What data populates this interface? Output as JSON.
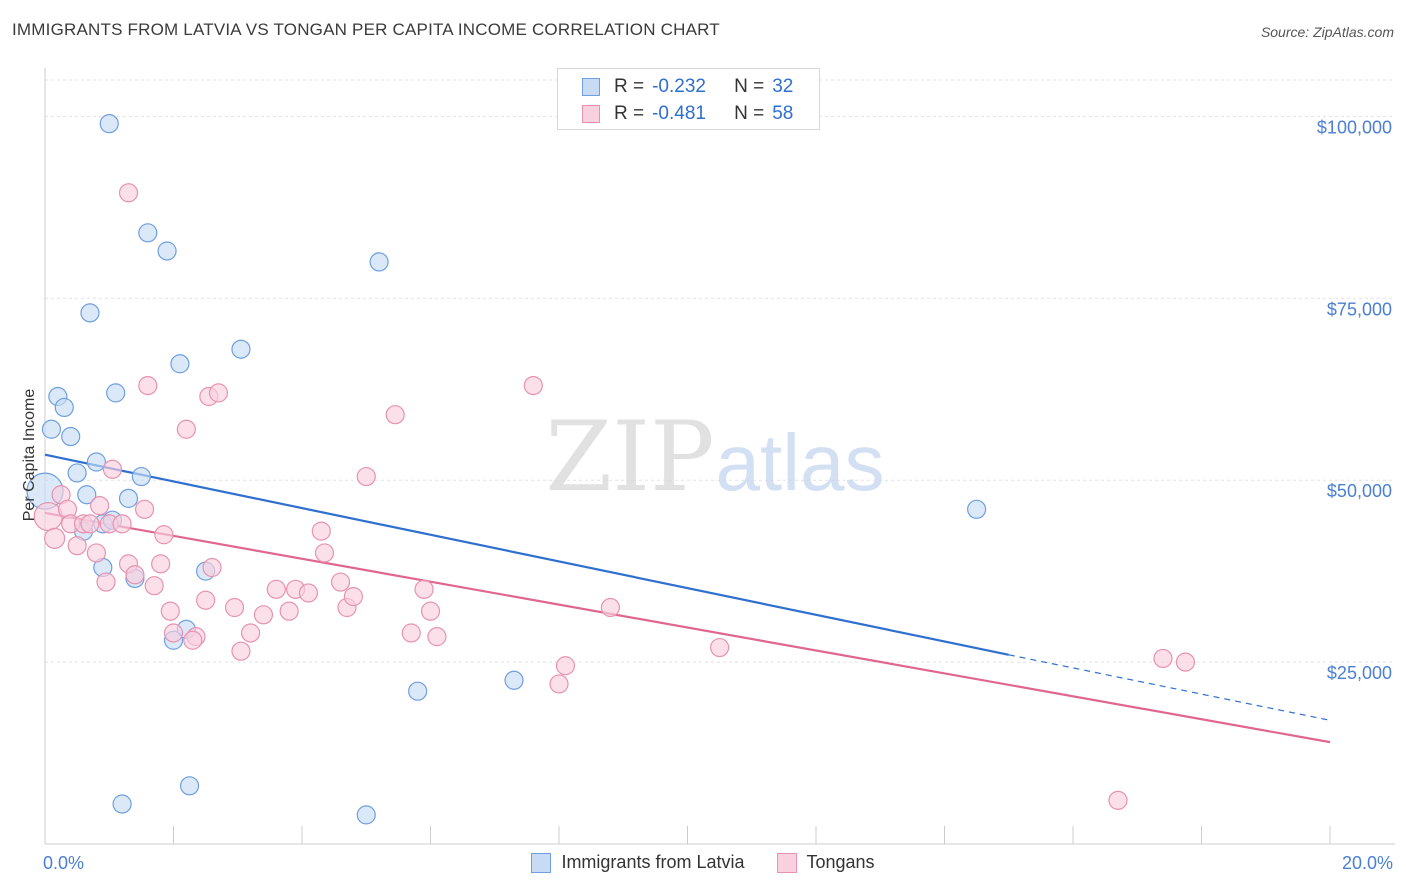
{
  "title": "IMMIGRANTS FROM LATVIA VS TONGAN PER CAPITA INCOME CORRELATION CHART",
  "source": "Source: ZipAtlas.com",
  "watermark": {
    "zip": "ZIP",
    "atlas": "atlas"
  },
  "legend_top": {
    "rows": [
      {
        "r_label": "R =",
        "r_value": "-0.232",
        "n_label": "N =",
        "n_value": "32"
      },
      {
        "r_label": "R =",
        "r_value": "-0.481",
        "n_label": "N =",
        "n_value": "58"
      }
    ]
  },
  "chart_data": {
    "type": "scatter",
    "title": "IMMIGRANTS FROM LATVIA VS TONGAN PER CAPITA INCOME CORRELATION CHART",
    "xlabel": "",
    "ylabel": "Per Capita Income",
    "xlim": [
      0,
      20
    ],
    "ylim": [
      0,
      105000
    ],
    "x_tick_labels": [
      "0.0%",
      "20.0%"
    ],
    "y_ticks": [
      {
        "value": 25000,
        "label": "$25,000"
      },
      {
        "value": 50000,
        "label": "$50,000"
      },
      {
        "value": 75000,
        "label": "$75,000"
      },
      {
        "value": 100000,
        "label": "$100,000"
      }
    ],
    "grid": true,
    "legend_position": "bottom",
    "series": [
      {
        "name": "Immigrants from Latvia",
        "color": "#6f9fe0",
        "fill": "#c7dbf5",
        "trend": {
          "x0": 0,
          "y0": 53500,
          "x1": 15,
          "y1": 26000,
          "dash_x1": 20,
          "dash_y1": 17000,
          "color": "#2f6fcf"
        },
        "points": [
          [
            0.0,
            48500,
            18
          ],
          [
            0.1,
            57000,
            9
          ],
          [
            0.2,
            61500,
            9
          ],
          [
            0.3,
            60000,
            9
          ],
          [
            0.4,
            56000,
            9
          ],
          [
            0.5,
            51000,
            9
          ],
          [
            0.6,
            43000,
            9
          ],
          [
            0.65,
            48000,
            9
          ],
          [
            0.7,
            73000,
            9
          ],
          [
            0.8,
            52500,
            9
          ],
          [
            0.9,
            38000,
            9
          ],
          [
            0.9,
            44000,
            9
          ],
          [
            1.0,
            99000,
            9
          ],
          [
            1.05,
            44500,
            9
          ],
          [
            1.1,
            62000,
            9
          ],
          [
            1.2,
            5500,
            9
          ],
          [
            1.3,
            47500,
            9
          ],
          [
            1.4,
            36500,
            9
          ],
          [
            1.5,
            50500,
            9
          ],
          [
            1.6,
            84000,
            9
          ],
          [
            1.9,
            81500,
            9
          ],
          [
            2.1,
            66000,
            9
          ],
          [
            2.2,
            29500,
            9
          ],
          [
            2.25,
            8000,
            9
          ],
          [
            2.5,
            37500,
            9
          ],
          [
            3.05,
            68000,
            9
          ],
          [
            5.0,
            4000,
            9
          ],
          [
            5.2,
            80000,
            9
          ],
          [
            5.8,
            21000,
            9
          ],
          [
            7.3,
            22500,
            9
          ],
          [
            14.5,
            46000,
            9
          ],
          [
            2.0,
            28000,
            9
          ]
        ]
      },
      {
        "name": "Tongans",
        "color": "#e892b0",
        "fill": "#f9d0de",
        "trend": {
          "x0": 0,
          "y0": 45500,
          "x1": 20,
          "y1": 14000,
          "color": "#e0668f"
        },
        "points": [
          [
            0.05,
            45000,
            14
          ],
          [
            0.15,
            42000,
            10
          ],
          [
            0.25,
            48000,
            9
          ],
          [
            0.35,
            46000,
            9
          ],
          [
            0.4,
            44000,
            9
          ],
          [
            0.5,
            41000,
            9
          ],
          [
            0.6,
            44000,
            9
          ],
          [
            0.7,
            44000,
            9
          ],
          [
            0.8,
            40000,
            9
          ],
          [
            0.85,
            46500,
            9
          ],
          [
            0.95,
            36000,
            9
          ],
          [
            1.0,
            44000,
            9
          ],
          [
            1.05,
            51500,
            9
          ],
          [
            1.2,
            44000,
            9
          ],
          [
            1.3,
            38500,
            9
          ],
          [
            1.3,
            89500,
            9
          ],
          [
            1.4,
            37000,
            9
          ],
          [
            1.55,
            46000,
            9
          ],
          [
            1.6,
            63000,
            9
          ],
          [
            1.7,
            35500,
            9
          ],
          [
            1.8,
            38500,
            9
          ],
          [
            1.85,
            42500,
            9
          ],
          [
            1.95,
            32000,
            9
          ],
          [
            2.0,
            29000,
            9
          ],
          [
            2.2,
            57000,
            9
          ],
          [
            2.35,
            28500,
            9
          ],
          [
            2.3,
            28000,
            9
          ],
          [
            2.5,
            33500,
            9
          ],
          [
            2.55,
            61500,
            9
          ],
          [
            2.6,
            38000,
            9
          ],
          [
            2.7,
            62000,
            9
          ],
          [
            2.95,
            32500,
            9
          ],
          [
            3.05,
            26500,
            9
          ],
          [
            3.2,
            29000,
            9
          ],
          [
            3.4,
            31500,
            9
          ],
          [
            3.6,
            35000,
            9
          ],
          [
            3.8,
            32000,
            9
          ],
          [
            3.9,
            35000,
            9
          ],
          [
            4.1,
            34500,
            9
          ],
          [
            4.3,
            43000,
            9
          ],
          [
            4.35,
            40000,
            9
          ],
          [
            4.6,
            36000,
            9
          ],
          [
            4.7,
            32500,
            9
          ],
          [
            4.8,
            34000,
            9
          ],
          [
            5.0,
            50500,
            9
          ],
          [
            5.45,
            59000,
            9
          ],
          [
            5.7,
            29000,
            9
          ],
          [
            5.9,
            35000,
            9
          ],
          [
            6.0,
            32000,
            9
          ],
          [
            6.1,
            28500,
            9
          ],
          [
            7.6,
            63000,
            9
          ],
          [
            8.0,
            22000,
            9
          ],
          [
            8.1,
            24500,
            9
          ],
          [
            8.8,
            32500,
            9
          ],
          [
            10.5,
            27000,
            9
          ],
          [
            16.7,
            6000,
            9
          ],
          [
            17.4,
            25500,
            9
          ],
          [
            17.75,
            25000,
            9
          ]
        ]
      }
    ]
  }
}
